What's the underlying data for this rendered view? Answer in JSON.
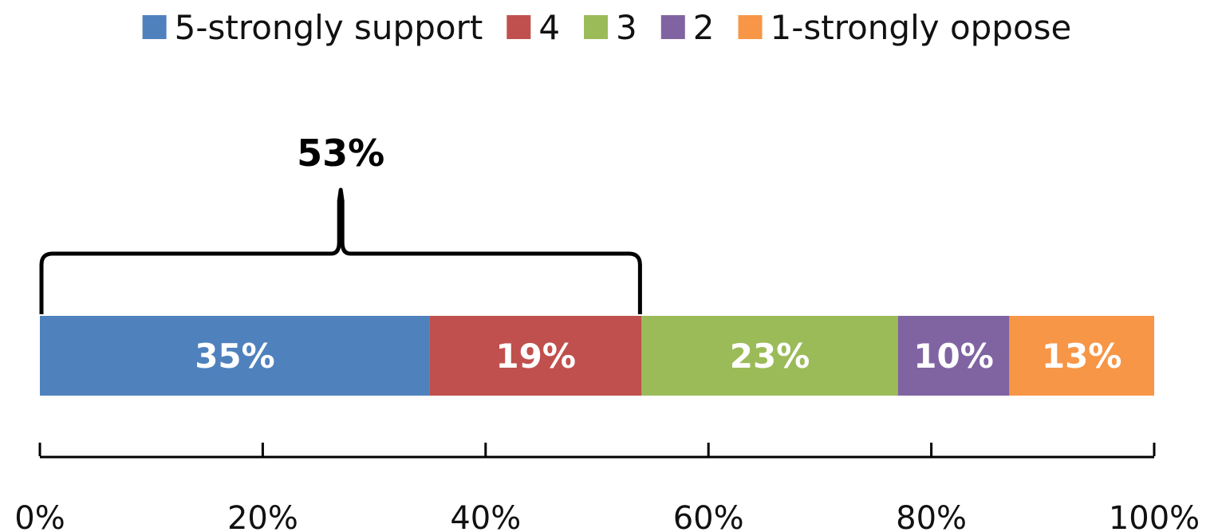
{
  "chart_data": {
    "type": "bar",
    "orientation": "horizontal",
    "stacked": true,
    "series": [
      {
        "name": "5-strongly support",
        "value": 35,
        "label": "35%",
        "color": "#4F81BD"
      },
      {
        "name": "4",
        "value": 19,
        "label": "19%",
        "color": "#C0504D"
      },
      {
        "name": "3",
        "value": 23,
        "label": "23%",
        "color": "#9BBB59"
      },
      {
        "name": "2",
        "value": 10,
        "label": "10%",
        "color": "#8064A2"
      },
      {
        "name": "1-strongly oppose",
        "value": 13,
        "label": "13%",
        "color": "#F79646"
      }
    ],
    "xlim": [
      0,
      100
    ],
    "x_ticks": [
      "0%",
      "20%",
      "40%",
      "60%",
      "80%",
      "100%"
    ],
    "legend_position": "top",
    "annotation": {
      "label": "53%",
      "spans_series": [
        "5-strongly support",
        "4"
      ]
    },
    "grid": false
  }
}
